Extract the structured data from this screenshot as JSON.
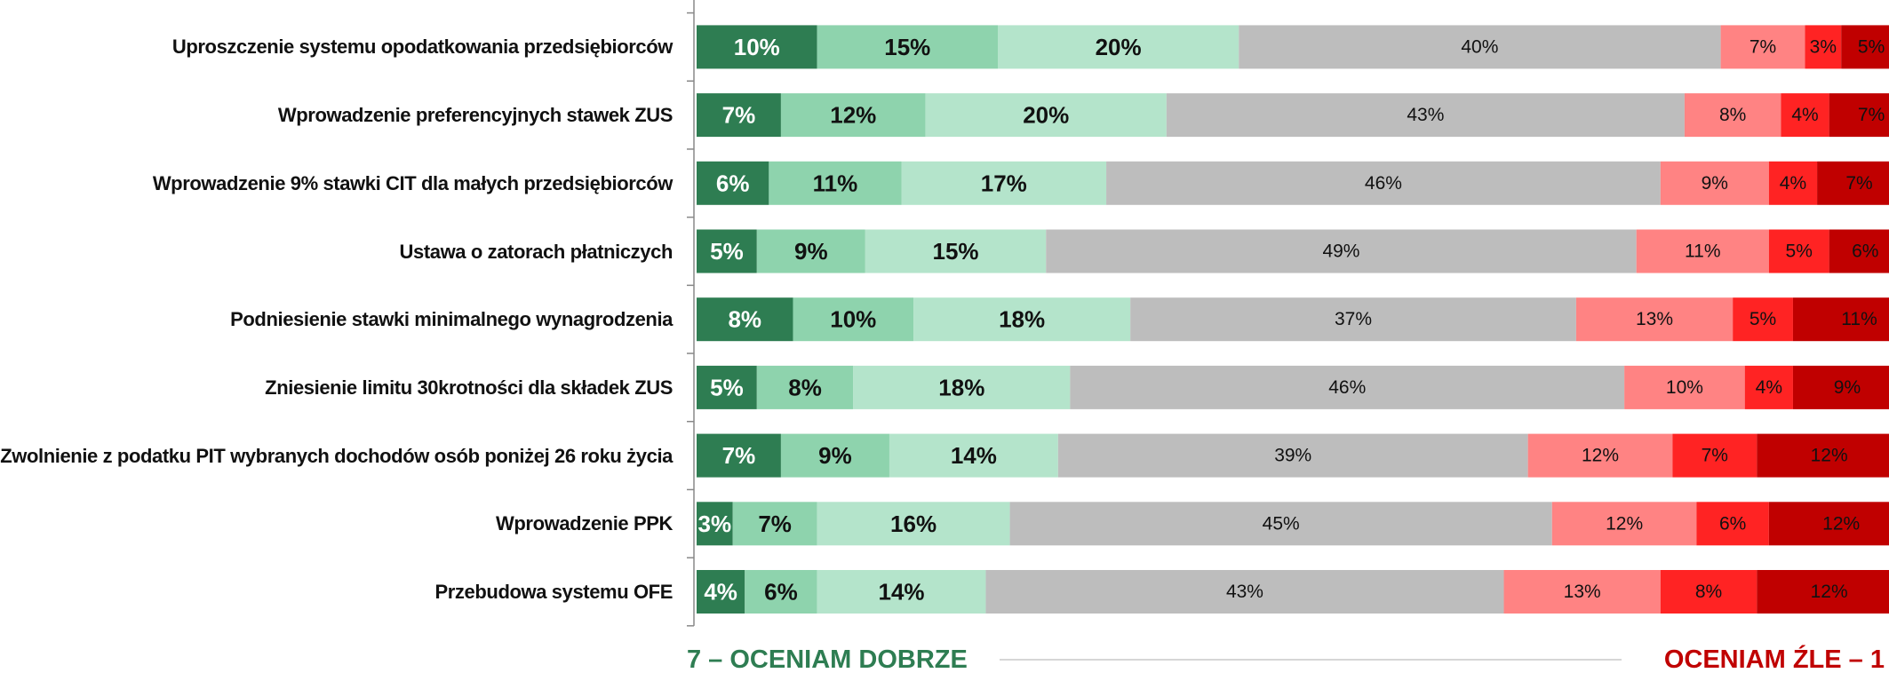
{
  "chart_data": {
    "type": "stacked-bar",
    "orientation": "horizontal",
    "categories": [
      "Uproszczenie systemu opodatkowania przedsiębiorców",
      "Wprowadzenie preferencyjnych stawek ZUS",
      "Wprowadzenie 9% stawki CIT dla małych przedsiębiorców",
      "Ustawa o zatorach płatniczych",
      "Podniesienie stawki minimalnego wynagrodzenia",
      "Zniesienie limitu 30krotności dla składek ZUS",
      "Zwolnienie z podatku PIT wybranych dochodów osób poniżej 26 roku życia",
      "Wprowadzenie PPK",
      "Przebudowa systemu OFE"
    ],
    "xlim": [
      0,
      100
    ],
    "series": [
      {
        "color": "#2e7d52",
        "values": [
          10,
          7,
          6,
          5,
          8,
          5,
          7,
          3,
          4
        ],
        "value_labels": [
          "10%",
          "7%",
          "6%",
          "5%",
          "8%",
          "5%",
          "7%",
          "3%",
          "4%"
        ]
      },
      {
        "color": "#8ed3ad",
        "values": [
          15,
          12,
          11,
          9,
          10,
          8,
          9,
          7,
          6
        ],
        "value_labels": [
          "15%",
          "12%",
          "11%",
          "9%",
          "10%",
          "8%",
          "9%",
          "7%",
          "6%"
        ]
      },
      {
        "color": "#b4e4cb",
        "values": [
          20,
          20,
          17,
          15,
          18,
          18,
          14,
          16,
          14
        ],
        "value_labels": [
          "20%",
          "20%",
          "17%",
          "15%",
          "18%",
          "18%",
          "14%",
          "16%",
          "14%"
        ]
      },
      {
        "color": "#bdbdbd",
        "values": [
          40,
          43,
          46,
          49,
          37,
          46,
          39,
          45,
          43
        ],
        "value_labels": [
          "40%",
          "43%",
          "46%",
          "49%",
          "37%",
          "46%",
          "39%",
          "45%",
          "43%"
        ]
      },
      {
        "color": "#ff8383",
        "values": [
          7,
          8,
          9,
          11,
          13,
          10,
          12,
          12,
          13
        ],
        "value_labels": [
          "7%",
          "8%",
          "9%",
          "11%",
          "13%",
          "10%",
          "12%",
          "12%",
          "13%"
        ]
      },
      {
        "color": "#ff2323",
        "values": [
          3,
          4,
          4,
          5,
          5,
          4,
          7,
          6,
          8
        ],
        "value_labels": [
          "3%",
          "4%",
          "4%",
          "5%",
          "5%",
          "4%",
          "7%",
          "6%",
          "8%"
        ]
      },
      {
        "color": "#c00000",
        "values": [
          5,
          7,
          7,
          6,
          11,
          9,
          12,
          12,
          12
        ],
        "value_labels": [
          "5%",
          "7%",
          "7%",
          "6%",
          "11%",
          "9%",
          "12%",
          "12%",
          "12%"
        ]
      }
    ],
    "left_caption": "7 – OCENIAM DOBRZE",
    "right_caption": "OCENIAM ŹLE – 1"
  }
}
